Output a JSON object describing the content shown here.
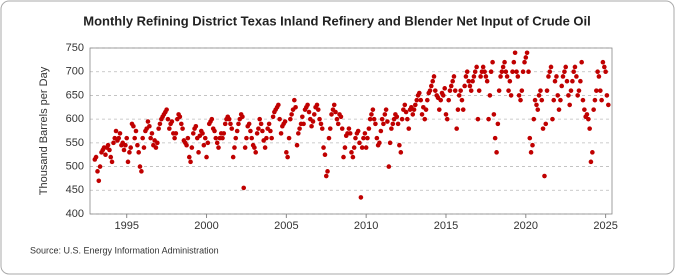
{
  "chart_data": {
    "type": "scatter",
    "title": "Monthly Refining District Texas Inland Refinery and Blender Net Input of Crude Oil",
    "y_label": "Thousand Barrels per Day",
    "source": "Source: U.S. Energy Information Administration",
    "color": "#c00000",
    "grid": true,
    "xlim": [
      1992.7,
      2025.4
    ],
    "ylim": [
      400,
      750
    ],
    "xticks": [
      1995,
      2000,
      2005,
      2010,
      2015,
      2020,
      2025
    ],
    "yticks": [
      400,
      450,
      500,
      550,
      600,
      650,
      700,
      750
    ],
    "x": [
      1993,
      1993.08,
      1993.17,
      1993.25,
      1993.33,
      1993.42,
      1993.5,
      1993.58,
      1993.67,
      1993.75,
      1993.83,
      1993.92,
      1994,
      1994.08,
      1994.17,
      1994.25,
      1994.33,
      1994.42,
      1994.5,
      1994.58,
      1994.67,
      1994.75,
      1994.83,
      1994.92,
      1995,
      1995.08,
      1995.17,
      1995.25,
      1995.33,
      1995.42,
      1995.5,
      1995.58,
      1995.67,
      1995.75,
      1995.83,
      1995.92,
      1996,
      1996.08,
      1996.17,
      1996.25,
      1996.33,
      1996.42,
      1996.5,
      1996.58,
      1996.67,
      1996.75,
      1996.83,
      1996.92,
      1997,
      1997.08,
      1997.17,
      1997.25,
      1997.33,
      1997.42,
      1997.5,
      1997.58,
      1997.67,
      1997.75,
      1997.83,
      1997.92,
      1998,
      1998.08,
      1998.17,
      1998.25,
      1998.33,
      1998.42,
      1998.5,
      1998.58,
      1998.67,
      1998.75,
      1998.83,
      1998.92,
      1999,
      1999.08,
      1999.17,
      1999.25,
      1999.33,
      1999.42,
      1999.5,
      1999.58,
      1999.67,
      1999.75,
      1999.83,
      1999.92,
      2000,
      2000.08,
      2000.17,
      2000.25,
      2000.33,
      2000.42,
      2000.5,
      2000.58,
      2000.67,
      2000.75,
      2000.83,
      2000.92,
      2001,
      2001.08,
      2001.17,
      2001.25,
      2001.33,
      2001.42,
      2001.5,
      2001.58,
      2001.67,
      2001.75,
      2001.83,
      2001.92,
      2002,
      2002.08,
      2002.17,
      2002.25,
      2002.33,
      2002.42,
      2002.5,
      2002.58,
      2002.67,
      2002.75,
      2002.83,
      2002.92,
      2003,
      2003.08,
      2003.17,
      2003.25,
      2003.33,
      2003.42,
      2003.5,
      2003.58,
      2003.67,
      2003.75,
      2003.83,
      2003.92,
      2004,
      2004.08,
      2004.17,
      2004.25,
      2004.33,
      2004.42,
      2004.5,
      2004.58,
      2004.67,
      2004.75,
      2004.83,
      2004.92,
      2005,
      2005.08,
      2005.17,
      2005.25,
      2005.33,
      2005.42,
      2005.5,
      2005.58,
      2005.67,
      2005.75,
      2005.83,
      2005.92,
      2006,
      2006.08,
      2006.17,
      2006.25,
      2006.33,
      2006.42,
      2006.5,
      2006.58,
      2006.67,
      2006.75,
      2006.83,
      2006.92,
      2007,
      2007.08,
      2007.17,
      2007.25,
      2007.33,
      2007.42,
      2007.5,
      2007.58,
      2007.67,
      2007.75,
      2007.83,
      2007.92,
      2008,
      2008.08,
      2008.17,
      2008.25,
      2008.33,
      2008.42,
      2008.5,
      2008.58,
      2008.67,
      2008.75,
      2008.83,
      2008.92,
      2009,
      2009.08,
      2009.17,
      2009.25,
      2009.33,
      2009.42,
      2009.5,
      2009.58,
      2009.67,
      2009.75,
      2009.83,
      2009.92,
      2010,
      2010.08,
      2010.17,
      2010.25,
      2010.33,
      2010.42,
      2010.5,
      2010.58,
      2010.67,
      2010.75,
      2010.83,
      2010.92,
      2011,
      2011.08,
      2011.17,
      2011.25,
      2011.33,
      2011.42,
      2011.5,
      2011.58,
      2011.67,
      2011.75,
      2011.83,
      2011.92,
      2012,
      2012.08,
      2012.17,
      2012.25,
      2012.33,
      2012.42,
      2012.5,
      2012.58,
      2012.67,
      2012.75,
      2012.83,
      2012.92,
      2013,
      2013.08,
      2013.17,
      2013.25,
      2013.33,
      2013.42,
      2013.5,
      2013.58,
      2013.67,
      2013.75,
      2013.83,
      2013.92,
      2014,
      2014.08,
      2014.17,
      2014.25,
      2014.33,
      2014.42,
      2014.5,
      2014.58,
      2014.67,
      2014.75,
      2014.83,
      2014.92,
      2015,
      2015.08,
      2015.17,
      2015.25,
      2015.33,
      2015.42,
      2015.5,
      2015.58,
      2015.67,
      2015.75,
      2015.83,
      2015.92,
      2016,
      2016.08,
      2016.17,
      2016.25,
      2016.33,
      2016.42,
      2016.5,
      2016.58,
      2016.67,
      2016.75,
      2016.83,
      2016.92,
      2017,
      2017.08,
      2017.17,
      2017.25,
      2017.33,
      2017.42,
      2017.5,
      2017.58,
      2017.67,
      2017.75,
      2017.83,
      2017.92,
      2018,
      2018.08,
      2018.17,
      2018.25,
      2018.33,
      2018.42,
      2018.5,
      2018.58,
      2018.67,
      2018.75,
      2018.83,
      2018.92,
      2019,
      2019.08,
      2019.17,
      2019.25,
      2019.33,
      2019.42,
      2019.5,
      2019.58,
      2019.67,
      2019.75,
      2019.83,
      2019.92,
      2020,
      2020.08,
      2020.17,
      2020.25,
      2020.33,
      2020.42,
      2020.5,
      2020.58,
      2020.67,
      2020.75,
      2020.83,
      2020.92,
      2021,
      2021.08,
      2021.17,
      2021.25,
      2021.33,
      2021.42,
      2021.5,
      2021.58,
      2021.67,
      2021.75,
      2021.83,
      2021.92,
      2022,
      2022.08,
      2022.17,
      2022.25,
      2022.33,
      2022.42,
      2022.5,
      2022.58,
      2022.67,
      2022.75,
      2022.83,
      2022.92,
      2023,
      2023.08,
      2023.17,
      2023.25,
      2023.33,
      2023.42,
      2023.5,
      2023.58,
      2023.67,
      2023.75,
      2023.83,
      2023.92,
      2024,
      2024.08,
      2024.17,
      2024.25,
      2024.33,
      2024.42,
      2024.5,
      2024.58,
      2024.67,
      2024.75,
      2024.83,
      2024.92,
      2025,
      2025.08,
      2025.17
    ],
    "values": [
      515,
      520,
      490,
      470,
      500,
      530,
      535,
      540,
      525,
      540,
      545,
      535,
      520,
      510,
      550,
      560,
      575,
      555,
      560,
      570,
      545,
      550,
      535,
      545,
      560,
      510,
      530,
      540,
      590,
      585,
      560,
      575,
      545,
      530,
      500,
      490,
      560,
      540,
      575,
      580,
      595,
      585,
      560,
      570,
      545,
      555,
      540,
      550,
      580,
      590,
      600,
      605,
      610,
      615,
      620,
      600,
      580,
      590,
      595,
      570,
      560,
      570,
      600,
      610,
      605,
      590,
      580,
      555,
      550,
      545,
      560,
      520,
      510,
      540,
      570,
      580,
      585,
      560,
      530,
      565,
      575,
      570,
      545,
      560,
      520,
      550,
      590,
      595,
      600,
      580,
      575,
      560,
      550,
      540,
      560,
      570,
      560,
      570,
      590,
      600,
      605,
      600,
      590,
      580,
      520,
      540,
      560,
      575,
      590,
      600,
      610,
      605,
      455,
      540,
      560,
      585,
      590,
      575,
      560,
      545,
      540,
      530,
      570,
      580,
      600,
      590,
      575,
      555,
      540,
      560,
      580,
      590,
      575,
      560,
      605,
      615,
      620,
      625,
      630,
      600,
      570,
      585,
      590,
      595,
      530,
      520,
      560,
      600,
      610,
      620,
      640,
      625,
      545,
      570,
      580,
      590,
      605,
      590,
      620,
      625,
      630,
      615,
      600,
      585,
      595,
      610,
      625,
      630,
      620,
      600,
      590,
      580,
      540,
      525,
      480,
      490,
      560,
      580,
      610,
      620,
      630,
      615,
      600,
      590,
      610,
      605,
      580,
      520,
      540,
      565,
      570,
      580,
      570,
      530,
      520,
      540,
      560,
      570,
      575,
      550,
      435,
      540,
      560,
      570,
      540,
      560,
      580,
      600,
      610,
      620,
      600,
      590,
      560,
      545,
      550,
      575,
      600,
      590,
      610,
      620,
      595,
      500,
      550,
      580,
      590,
      600,
      610,
      605,
      590,
      545,
      530,
      600,
      620,
      630,
      615,
      600,
      580,
      620,
      625,
      610,
      620,
      630,
      640,
      650,
      655,
      640,
      610,
      625,
      600,
      620,
      640,
      655,
      660,
      670,
      680,
      690,
      660,
      650,
      645,
      620,
      640,
      655,
      650,
      665,
      610,
      600,
      640,
      660,
      670,
      680,
      690,
      660,
      580,
      620,
      650,
      660,
      640,
      620,
      670,
      690,
      700,
      680,
      670,
      660,
      680,
      690,
      700,
      710,
      600,
      660,
      690,
      700,
      710,
      700,
      690,
      680,
      600,
      650,
      700,
      720,
      610,
      560,
      530,
      590,
      660,
      690,
      700,
      710,
      720,
      700,
      690,
      660,
      680,
      650,
      700,
      720,
      740,
      700,
      690,
      650,
      640,
      660,
      700,
      720,
      730,
      740,
      700,
      560,
      530,
      545,
      600,
      640,
      630,
      620,
      650,
      660,
      640,
      580,
      480,
      590,
      660,
      690,
      700,
      710,
      600,
      640,
      680,
      690,
      650,
      620,
      640,
      670,
      690,
      700,
      710,
      680,
      650,
      630,
      660,
      680,
      700,
      710,
      690,
      650,
      660,
      680,
      720,
      640,
      620,
      605,
      610,
      600,
      580,
      510,
      530,
      620,
      640,
      660,
      700,
      690,
      660,
      640,
      720,
      710,
      700,
      650,
      630
    ]
  }
}
